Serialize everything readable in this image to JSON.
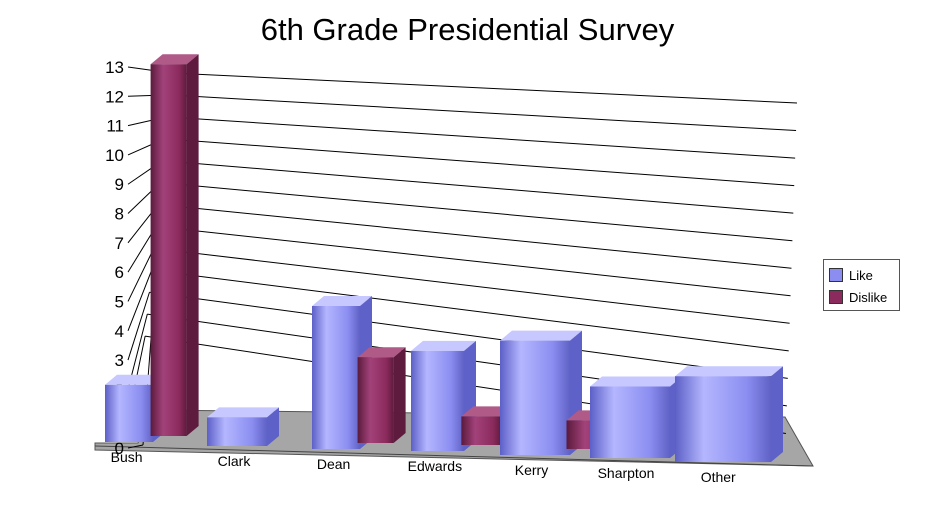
{
  "chart_data": {
    "type": "bar",
    "title": "6th Grade Presidential Survey",
    "xlabel": "",
    "ylabel": "",
    "ylim": [
      0,
      13
    ],
    "y_ticks": [
      "0",
      "1",
      "2",
      "3",
      "4",
      "5",
      "6",
      "7",
      "8",
      "9",
      "10",
      "11",
      "12",
      "13"
    ],
    "grid": true,
    "legend_position": "right",
    "categories": [
      "Bush",
      "Clark",
      "Dean",
      "Edwards",
      "Kerry",
      "Sharpton",
      "Other"
    ],
    "series": [
      {
        "name": "Like",
        "color": "#8b8ef0",
        "values": [
          2,
          1,
          5,
          3.5,
          4,
          2.5,
          3
        ]
      },
      {
        "name": "Dislike",
        "color": "#8b2a5c",
        "values": [
          13,
          0,
          3,
          1,
          1,
          0,
          0
        ]
      }
    ]
  }
}
